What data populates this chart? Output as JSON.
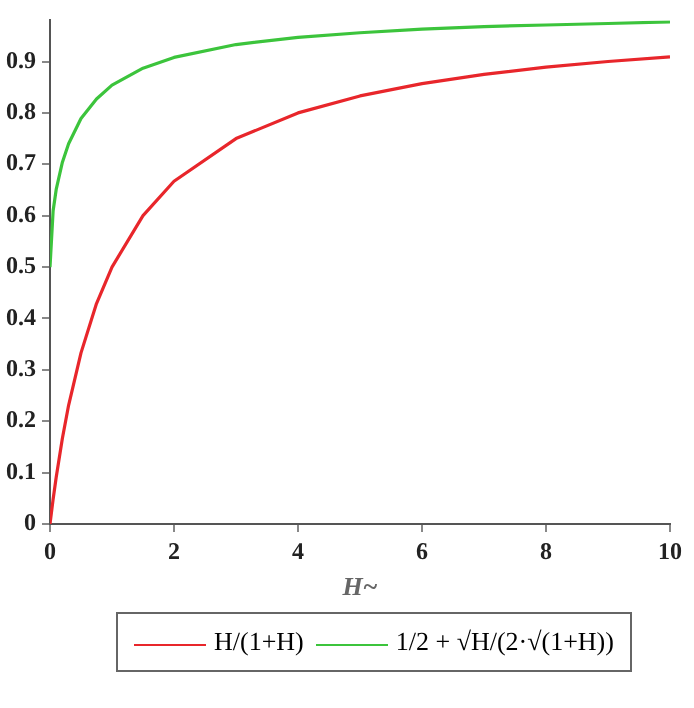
{
  "chart_data": {
    "type": "line",
    "xlabel": "H~",
    "x": [
      0,
      0.05,
      0.1,
      0.2,
      0.3,
      0.5,
      0.75,
      1,
      1.5,
      2,
      3,
      4,
      5,
      6,
      7,
      8,
      9,
      10
    ],
    "series": [
      {
        "name": "H/(1+H)",
        "color": "#e8262b",
        "values": [
          0,
          0.048,
          0.091,
          0.167,
          0.231,
          0.333,
          0.429,
          0.5,
          0.6,
          0.667,
          0.75,
          0.8,
          0.833,
          0.857,
          0.875,
          0.889,
          0.9,
          0.909
        ]
      },
      {
        "name": "1/2 + √H/(2·√(1+H))",
        "color": "#3cc43c",
        "values": [
          0.5,
          0.609,
          0.651,
          0.704,
          0.74,
          0.789,
          0.827,
          0.854,
          0.887,
          0.908,
          0.933,
          0.947,
          0.956,
          0.963,
          0.968,
          0.971,
          0.974,
          0.977
        ]
      }
    ],
    "xlim": [
      0,
      10
    ],
    "xticks": [
      0,
      2,
      4,
      6,
      8,
      10
    ],
    "ylim": [
      0,
      0.98
    ],
    "yticks": [
      0,
      0.1,
      0.2,
      0.3,
      0.4,
      0.5,
      0.6,
      0.7,
      0.8,
      0.9
    ],
    "grid": false,
    "legend": "bottom",
    "marker": "none",
    "line_style": "solid"
  }
}
